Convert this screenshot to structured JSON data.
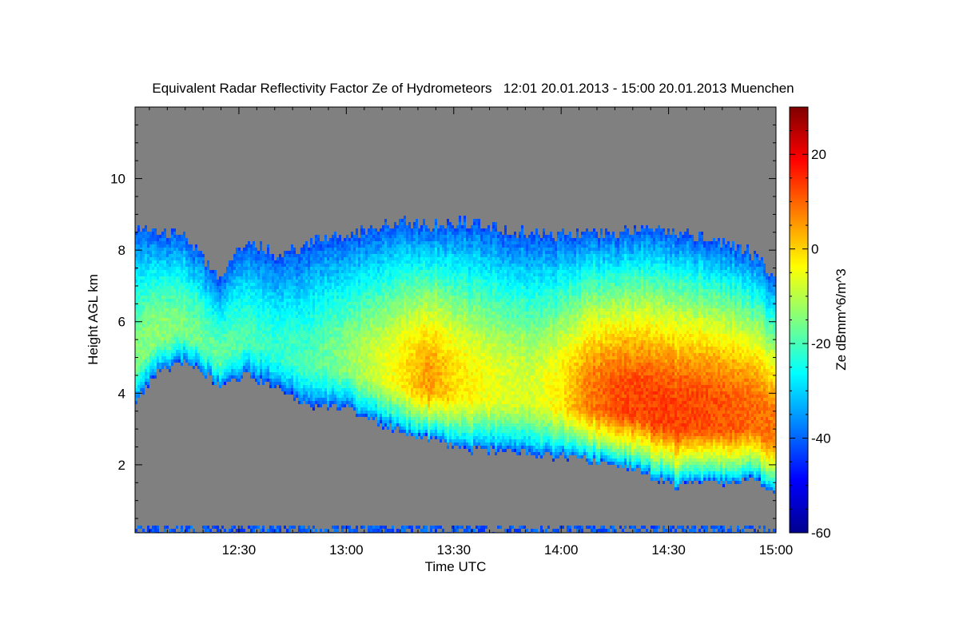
{
  "chart_data": {
    "type": "heatmap",
    "title": "Equivalent Radar Reflectivity Factor Ze of Hydrometeors   12:01 20.01.2013 - 15:00 20.01.2013 Muenchen",
    "xlabel": "Time UTC",
    "ylabel": "Height AGL km",
    "colorbar_label": "Ze dBmm^6/m^3",
    "x_range_minutes": [
      721,
      900
    ],
    "xlim_label": [
      "12:01",
      "15:00"
    ],
    "x_ticks": [
      {
        "minute": 750,
        "label": "12:30"
      },
      {
        "minute": 780,
        "label": "13:00"
      },
      {
        "minute": 810,
        "label": "13:30"
      },
      {
        "minute": 840,
        "label": "14:00"
      },
      {
        "minute": 870,
        "label": "14:30"
      },
      {
        "minute": 900,
        "label": "15:00"
      }
    ],
    "ylim": [
      0.1,
      12.0
    ],
    "y_ticks": [
      {
        "value": 2,
        "label": "2"
      },
      {
        "value": 4,
        "label": "4"
      },
      {
        "value": 6,
        "label": "6"
      },
      {
        "value": 8,
        "label": "8"
      },
      {
        "value": 10,
        "label": "10"
      }
    ],
    "colorbar_range": [
      -60,
      30
    ],
    "colorbar_ticks": [
      {
        "value": -60,
        "label": "-60"
      },
      {
        "value": -40,
        "label": "-40"
      },
      {
        "value": -20,
        "label": "-20"
      },
      {
        "value": 0,
        "label": "0"
      },
      {
        "value": 20,
        "label": "20"
      }
    ],
    "colormap": "jet",
    "no_signal_color": "#808080",
    "cloud_profile": [
      {
        "minute": 721,
        "base_km": 3.7,
        "top_km": 8.7,
        "max_ze": -15
      },
      {
        "minute": 727,
        "base_km": 4.6,
        "top_km": 8.5,
        "max_ze": -14
      },
      {
        "minute": 735,
        "base_km": 4.9,
        "top_km": 8.4,
        "max_ze": -16
      },
      {
        "minute": 745,
        "base_km": 4.2,
        "top_km": 7.2,
        "max_ze": -18
      },
      {
        "minute": 752,
        "base_km": 4.5,
        "top_km": 8.3,
        "max_ze": -20
      },
      {
        "minute": 760,
        "base_km": 4.2,
        "top_km": 7.9,
        "max_ze": -22
      },
      {
        "minute": 770,
        "base_km": 3.6,
        "top_km": 8.2,
        "max_ze": -20
      },
      {
        "minute": 780,
        "base_km": 3.6,
        "top_km": 8.4,
        "max_ze": -14
      },
      {
        "minute": 788,
        "base_km": 3.2,
        "top_km": 8.6,
        "max_ze": -8
      },
      {
        "minute": 795,
        "base_km": 2.9,
        "top_km": 8.8,
        "max_ze": -3
      },
      {
        "minute": 803,
        "base_km": 2.7,
        "top_km": 8.7,
        "max_ze": 5
      },
      {
        "minute": 812,
        "base_km": 2.4,
        "top_km": 8.8,
        "max_ze": -2
      },
      {
        "minute": 822,
        "base_km": 2.4,
        "top_km": 8.6,
        "max_ze": -6
      },
      {
        "minute": 832,
        "base_km": 2.3,
        "top_km": 8.5,
        "max_ze": -8
      },
      {
        "minute": 840,
        "base_km": 2.2,
        "top_km": 8.4,
        "max_ze": -2
      },
      {
        "minute": 848,
        "base_km": 2.1,
        "top_km": 8.5,
        "max_ze": 8
      },
      {
        "minute": 856,
        "base_km": 2.0,
        "top_km": 8.5,
        "max_ze": 12
      },
      {
        "minute": 864,
        "base_km": 1.7,
        "top_km": 8.6,
        "max_ze": 13
      },
      {
        "minute": 872,
        "base_km": 1.4,
        "top_km": 8.5,
        "max_ze": 13
      },
      {
        "minute": 882,
        "base_km": 1.5,
        "top_km": 8.3,
        "max_ze": 12
      },
      {
        "minute": 892,
        "base_km": 1.6,
        "top_km": 8.0,
        "max_ze": 10
      },
      {
        "minute": 900,
        "base_km": 1.3,
        "top_km": 7.2,
        "max_ze": 8
      }
    ],
    "clutter_band_km": 0.2
  }
}
